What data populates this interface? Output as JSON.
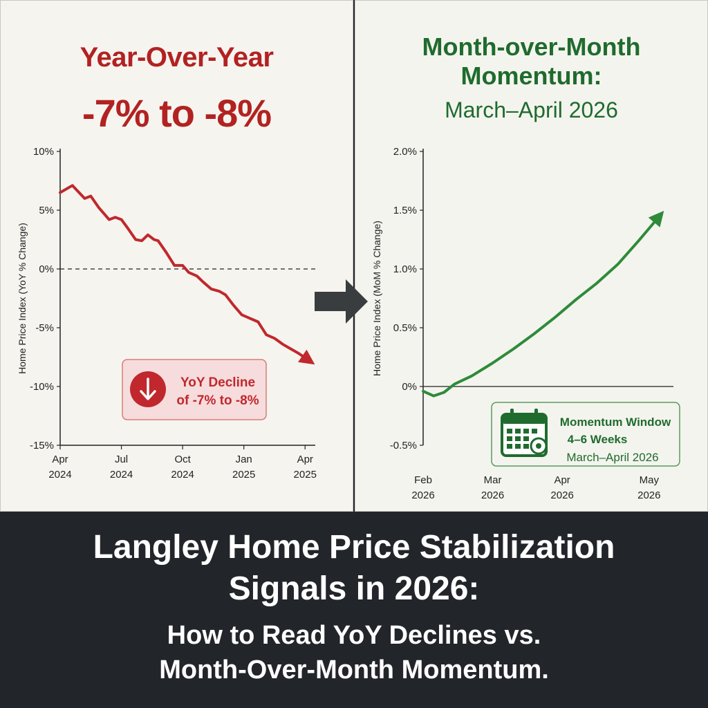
{
  "headline": {
    "left_line1": "Year-Over-Year",
    "left_line2": "-7% to -8%",
    "right_line1": "Month-over-Month",
    "right_line2": "Momentum:",
    "right_line3": "March–April 2026"
  },
  "callouts": {
    "yoy": {
      "line1": "YoY Decline",
      "line2": "of -7% to -8%",
      "icon": "down-arrow-icon",
      "color": "#c0282d"
    },
    "mom": {
      "line1": "Momentum Window",
      "line2": "4–6 Weeks",
      "line3": "March–April 2026",
      "icon": "calendar-icon",
      "color": "#1f6b2e"
    }
  },
  "footer": {
    "line1": "Langley Home Price Stabilization",
    "line2": "Signals in 2026:",
    "line3": "How to Read YoY Declines vs.",
    "line4": "Month-Over-Month Momentum."
  },
  "chart_data": [
    {
      "type": "line",
      "ylabel": "Home Price Index (YoY % Change)",
      "xlabel": "",
      "y_ticks": [
        10,
        5,
        0,
        -5,
        -10,
        -15
      ],
      "y_tick_labels": [
        "10%",
        "5%",
        "0%",
        "-5%",
        "-10%",
        "-15%"
      ],
      "ylim": [
        -15,
        10
      ],
      "x_ticks": [
        0,
        3,
        6,
        9,
        12
      ],
      "x_tick_labels": [
        [
          "Apr",
          "2024"
        ],
        [
          "Jul",
          "2024"
        ],
        [
          "Oct",
          "2024"
        ],
        [
          "Jan",
          "2025"
        ],
        [
          "Apr",
          "2025"
        ]
      ],
      "xlim": [
        0,
        12.5
      ],
      "reference_line": 0,
      "color": "#c0282d",
      "series": [
        {
          "x": [
            0,
            0.6,
            1.2,
            1.5,
            1.9,
            2.4,
            2.7,
            3.0,
            3.3,
            3.7,
            4.0,
            4.3,
            4.6,
            4.8,
            5.2,
            5.6,
            6.0,
            6.3,
            6.7,
            7.0,
            7.4,
            7.8,
            8.1,
            8.5,
            8.9,
            9.3,
            9.7,
            10.1,
            10.5,
            10.9,
            11.3,
            11.7,
            12.2
          ],
          "y": [
            6.5,
            7.1,
            6.0,
            6.2,
            5.2,
            4.2,
            4.4,
            4.2,
            3.5,
            2.5,
            2.4,
            2.9,
            2.5,
            2.4,
            1.4,
            0.3,
            0.3,
            -0.3,
            -0.6,
            -1.1,
            -1.7,
            -1.9,
            -2.2,
            -3.1,
            -3.9,
            -4.2,
            -4.5,
            -5.6,
            -5.9,
            -6.4,
            -6.8,
            -7.2,
            -7.8
          ]
        }
      ]
    },
    {
      "type": "line",
      "ylabel": "Home Price Index (MoM % Change)",
      "xlabel": "",
      "y_ticks": [
        2.0,
        1.5,
        1.0,
        0.5,
        0,
        -0.5
      ],
      "y_tick_labels": [
        "2.0%",
        "1.5%",
        "1.0%",
        "0.5%",
        "0%",
        "-0.5%"
      ],
      "ylim": [
        -0.5,
        2.0
      ],
      "x_ticks": [
        0,
        1,
        2,
        3.25
      ],
      "x_tick_labels": [
        [
          "Feb",
          "2026"
        ],
        [
          "Mar",
          "2026"
        ],
        [
          "Apr",
          "2026"
        ],
        [
          "May",
          "2026"
        ]
      ],
      "xlim": [
        0,
        3.6
      ],
      "reference_line": 0,
      "color": "#2e8b3a",
      "series": [
        {
          "x": [
            0,
            0.15,
            0.3,
            0.45,
            0.7,
            1.0,
            1.3,
            1.6,
            1.9,
            2.2,
            2.5,
            2.8,
            3.1,
            3.4
          ],
          "y": [
            -0.04,
            -0.08,
            -0.05,
            0.02,
            0.09,
            0.2,
            0.32,
            0.45,
            0.59,
            0.74,
            0.88,
            1.04,
            1.24,
            1.45
          ]
        }
      ]
    }
  ]
}
